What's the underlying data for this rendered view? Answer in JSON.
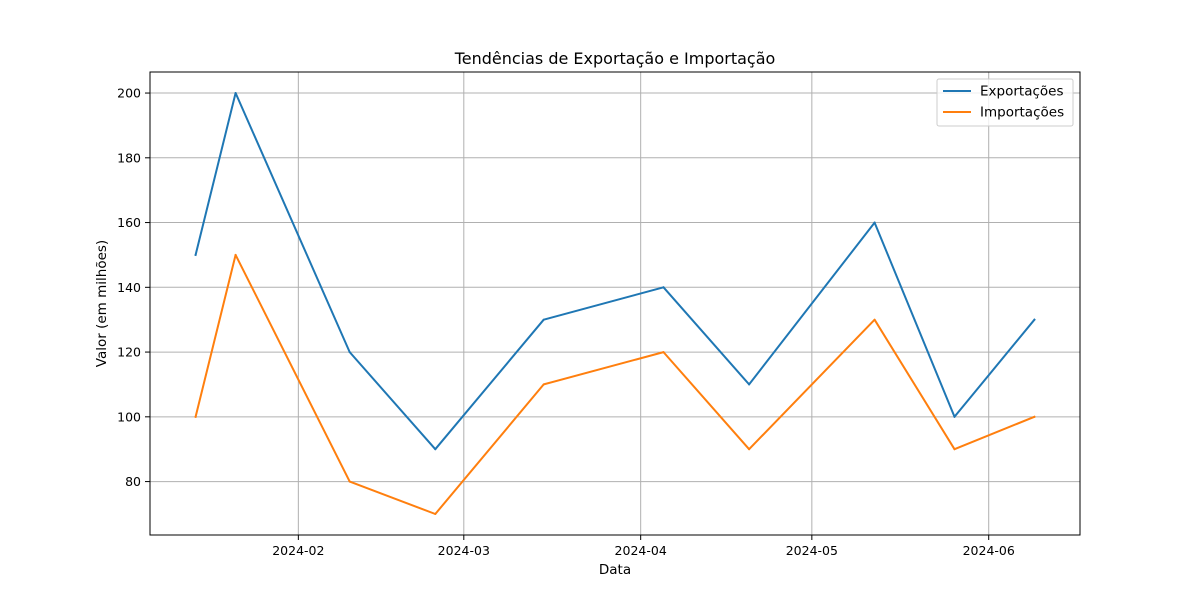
{
  "chart_data": {
    "type": "line",
    "title": "Tendências de Exportação e Importação",
    "xlabel": "Data",
    "ylabel": "Valor (em milhões)",
    "x": [
      "2024-01-14",
      "2024-01-21",
      "2024-02-10",
      "2024-02-25",
      "2024-03-15",
      "2024-04-05",
      "2024-04-20",
      "2024-05-12",
      "2024-05-26",
      "2024-06-09"
    ],
    "x_ticks": [
      "2024-02",
      "2024-03",
      "2024-04",
      "2024-05",
      "2024-06"
    ],
    "y_ticks": [
      80,
      100,
      120,
      140,
      160,
      180,
      200
    ],
    "ylim": [
      63.5,
      206.5
    ],
    "xlim": [
      "2024-01-06",
      "2024-06-17"
    ],
    "grid": true,
    "legend_position": "top-right",
    "series": [
      {
        "name": "Exportações",
        "color": "#1f77b4",
        "values": [
          150,
          200,
          120,
          90,
          130,
          140,
          110,
          160,
          100,
          130
        ]
      },
      {
        "name": "Importações",
        "color": "#ff7f0e",
        "values": [
          100,
          150,
          80,
          70,
          110,
          120,
          90,
          130,
          90,
          100
        ]
      }
    ]
  }
}
